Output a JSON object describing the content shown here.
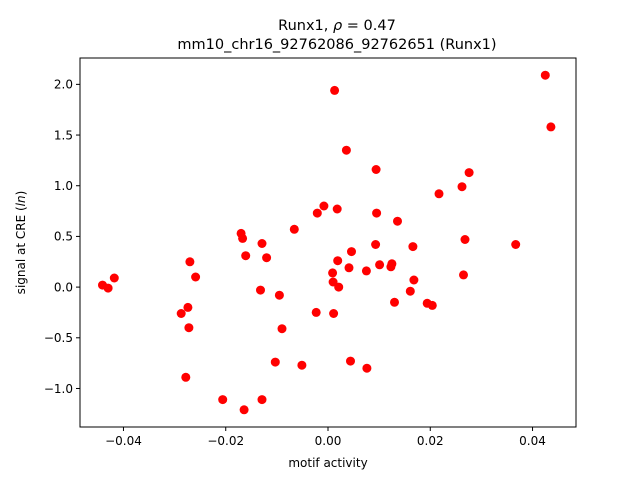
{
  "chart_data": {
    "type": "scatter",
    "title_line1_prefix": "Runx1, ",
    "title_rho_symbol": "ρ",
    "title_rho_value": " = 0.47",
    "title_line2": "mm10_chr16_92762086_92762651 (Runx1)",
    "xlabel": "motif activity",
    "ylabel_prefix": "signal at CRE (",
    "ylabel_italic": "ln",
    "ylabel_suffix": ")",
    "xlim": [
      -0.0485,
      0.0485
    ],
    "ylim": [
      -1.38,
      2.26
    ],
    "xticks": [
      -0.04,
      -0.02,
      0.0,
      0.02,
      0.04
    ],
    "xtick_labels": [
      "−0.04",
      "−0.02",
      "0.00",
      "0.02",
      "0.04"
    ],
    "yticks": [
      -1.0,
      -0.5,
      0.0,
      0.5,
      1.0,
      1.5,
      2.0
    ],
    "ytick_labels": [
      "−1.0",
      "−0.5",
      "0.0",
      "0.5",
      "1.0",
      "1.5",
      "2.0"
    ],
    "grid": false,
    "marker_color": "#ff0000",
    "points": [
      {
        "x": -0.0441,
        "y": 0.02
      },
      {
        "x": -0.043,
        "y": -0.01
      },
      {
        "x": -0.0418,
        "y": 0.09
      },
      {
        "x": -0.0287,
        "y": -0.26
      },
      {
        "x": -0.0278,
        "y": -0.89
      },
      {
        "x": -0.0274,
        "y": -0.2
      },
      {
        "x": -0.0272,
        "y": -0.4
      },
      {
        "x": -0.027,
        "y": 0.25
      },
      {
        "x": -0.0259,
        "y": 0.1
      },
      {
        "x": -0.0206,
        "y": -1.11
      },
      {
        "x": -0.017,
        "y": 0.53
      },
      {
        "x": -0.0167,
        "y": 0.48
      },
      {
        "x": -0.0164,
        "y": -1.21
      },
      {
        "x": -0.0161,
        "y": 0.31
      },
      {
        "x": -0.0132,
        "y": -0.03
      },
      {
        "x": -0.0129,
        "y": 0.43
      },
      {
        "x": -0.0129,
        "y": -1.11
      },
      {
        "x": -0.012,
        "y": 0.29
      },
      {
        "x": -0.0103,
        "y": -0.74
      },
      {
        "x": -0.0095,
        "y": -0.08
      },
      {
        "x": -0.009,
        "y": -0.41
      },
      {
        "x": -0.0066,
        "y": 0.57
      },
      {
        "x": -0.0051,
        "y": -0.77
      },
      {
        "x": -0.0023,
        "y": -0.25
      },
      {
        "x": -0.0021,
        "y": 0.73
      },
      {
        "x": -0.0008,
        "y": 0.8
      },
      {
        "x": 0.0009,
        "y": 0.14
      },
      {
        "x": 0.001,
        "y": 0.05
      },
      {
        "x": 0.0011,
        "y": -0.26
      },
      {
        "x": 0.0013,
        "y": 1.94
      },
      {
        "x": 0.0018,
        "y": 0.77
      },
      {
        "x": 0.0019,
        "y": 0.26
      },
      {
        "x": 0.0021,
        "y": 0.0
      },
      {
        "x": 0.0036,
        "y": 1.35
      },
      {
        "x": 0.0041,
        "y": 0.19
      },
      {
        "x": 0.0044,
        "y": -0.73
      },
      {
        "x": 0.0046,
        "y": 0.35
      },
      {
        "x": 0.0075,
        "y": 0.16
      },
      {
        "x": 0.0076,
        "y": -0.8
      },
      {
        "x": 0.0093,
        "y": 0.42
      },
      {
        "x": 0.0094,
        "y": 1.16
      },
      {
        "x": 0.0095,
        "y": 0.73
      },
      {
        "x": 0.0101,
        "y": 0.22
      },
      {
        "x": 0.0123,
        "y": 0.2
      },
      {
        "x": 0.0125,
        "y": 0.23
      },
      {
        "x": 0.013,
        "y": -0.15
      },
      {
        "x": 0.0136,
        "y": 0.65
      },
      {
        "x": 0.0161,
        "y": -0.04
      },
      {
        "x": 0.0166,
        "y": 0.4
      },
      {
        "x": 0.0168,
        "y": 0.07
      },
      {
        "x": 0.0194,
        "y": -0.16
      },
      {
        "x": 0.0204,
        "y": -0.18
      },
      {
        "x": 0.0217,
        "y": 0.92
      },
      {
        "x": 0.0262,
        "y": 0.99
      },
      {
        "x": 0.0265,
        "y": 0.12
      },
      {
        "x": 0.0268,
        "y": 0.47
      },
      {
        "x": 0.0276,
        "y": 1.13
      },
      {
        "x": 0.0367,
        "y": 0.42
      },
      {
        "x": 0.0425,
        "y": 2.09
      },
      {
        "x": 0.0436,
        "y": 1.58
      }
    ]
  }
}
